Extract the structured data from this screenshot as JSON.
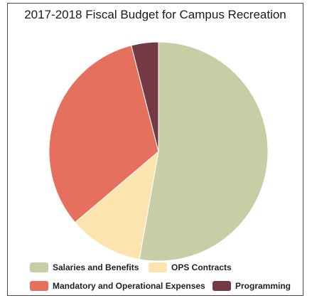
{
  "chart_data": {
    "type": "pie",
    "title": "2017-2018 Fiscal Budget for Campus Recreation",
    "start": "top",
    "direction": "clockwise",
    "legend_position": "bottom",
    "slices": [
      {
        "label": "Salaries and Benefits",
        "value": 52.8,
        "color": "#c9cda5"
      },
      {
        "label": "OPS Contracts",
        "value": 11.0,
        "color": "#fbe4ae"
      },
      {
        "label": "Mandatory and Operational Expenses",
        "value": 32.2,
        "color": "#e5705d"
      },
      {
        "label": "Programming",
        "value": 4.0,
        "color": "#733a46"
      }
    ]
  }
}
